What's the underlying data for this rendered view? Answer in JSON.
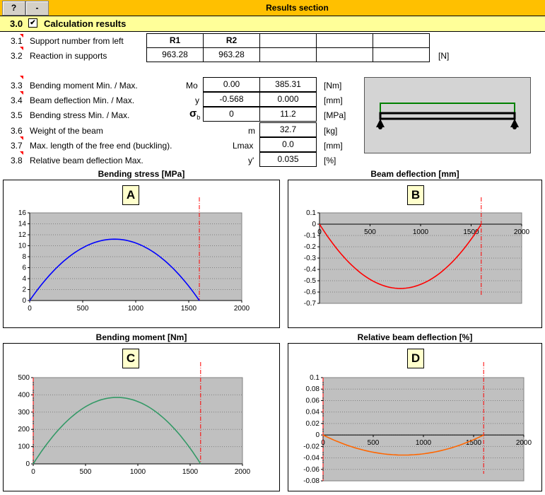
{
  "header": {
    "help_label": "?",
    "minus_label": "-",
    "title": "Results section"
  },
  "section": {
    "number": "3.0",
    "checked_mark": "✔",
    "title": "Calculation results"
  },
  "rows": {
    "r31": {
      "num": "3.1",
      "label": "Support number from left",
      "col1": "R1",
      "col2": "R2"
    },
    "r32": {
      "num": "3.2",
      "label": "Reaction in supports",
      "col1": "963.28",
      "col2": "963.28",
      "unit": "[N]"
    },
    "r33": {
      "num": "3.3",
      "label": "Bending moment Min. / Max.",
      "symbol": "Mo",
      "min": "0.00",
      "max": "385.31",
      "unit": "[Nm]"
    },
    "r34": {
      "num": "3.4",
      "label": "Beam deflection Min. / Max.",
      "symbol": "y",
      "min": "-0.568",
      "max": "0.000",
      "unit": "[mm]"
    },
    "r35": {
      "num": "3.5",
      "label": "Bending stress Min. / Max.",
      "symbol": "σ",
      "symbol_sub": "b",
      "min": "0",
      "max": "11.2",
      "unit": "[MPa]"
    },
    "r36": {
      "num": "3.6",
      "label": "Weight of the beam",
      "symbol": "m",
      "value": "32.7",
      "unit": "[kg]"
    },
    "r37": {
      "num": "3.7",
      "label": "Max. length of the free end (buckling).",
      "symbol": "Lmax",
      "value": "0.0",
      "unit": "[mm]"
    },
    "r38": {
      "num": "3.8",
      "label": "Relative beam deflection Max.",
      "symbol": "y'",
      "value": "0.035",
      "unit": "[%]"
    }
  },
  "chart_data": [
    {
      "id": "A",
      "type": "line",
      "title": "Bending stress  [MPa]",
      "tag": "A",
      "xlim": [
        0,
        2000
      ],
      "ylim": [
        0,
        16
      ],
      "x_ticks": [
        "0",
        "500",
        "1000",
        "1500",
        "2000"
      ],
      "y_ticks": [
        "0",
        "2",
        "4",
        "6",
        "8",
        "10",
        "12",
        "14",
        "16"
      ],
      "series": [
        {
          "color": "#0000ff",
          "shape": "parabola",
          "x_start": 0,
          "x_end": 1600,
          "peak": 11.2
        }
      ],
      "marker_x": 1600,
      "marker_color": "#ff0000"
    },
    {
      "id": "B",
      "type": "line",
      "title": "Beam deflection  [mm]",
      "tag": "B",
      "xlim": [
        0,
        2000
      ],
      "ylim": [
        -0.7,
        0.1
      ],
      "x_ticks": [
        "0",
        "500",
        "1000",
        "1500",
        "2000"
      ],
      "y_ticks": [
        "0.1",
        "0",
        "-0.1",
        "-0.2",
        "-0.3",
        "-0.4",
        "-0.5",
        "-0.6",
        "-0.7"
      ],
      "series": [
        {
          "color": "#ff0000",
          "shape": "parabola",
          "x_start": 0,
          "x_end": 1600,
          "peak": -0.568
        }
      ],
      "marker_x": 1600,
      "marker_color": "#ff0000"
    },
    {
      "id": "C",
      "type": "line",
      "title": "Bending moment  [Nm]",
      "tag": "C",
      "xlim": [
        0,
        2000
      ],
      "ylim": [
        0,
        500
      ],
      "x_ticks": [
        "0",
        "500",
        "1000",
        "1500",
        "2000"
      ],
      "y_ticks": [
        "0",
        "100",
        "200",
        "300",
        "400",
        "500"
      ],
      "series": [
        {
          "color": "#339966",
          "shape": "parabola",
          "x_start": 0,
          "x_end": 1600,
          "peak": 385.31
        }
      ],
      "marker_x": 1600,
      "marker_color": "#ff0000"
    },
    {
      "id": "D",
      "type": "line",
      "title": "Relative beam deflection  [%]",
      "tag": "D",
      "xlim": [
        0,
        2000
      ],
      "ylim": [
        -0.08,
        0.1
      ],
      "x_ticks": [
        "0",
        "500",
        "1000",
        "1500",
        "2000"
      ],
      "y_ticks": [
        "0.1",
        "0.08",
        "0.06",
        "0.04",
        "0.02",
        "0",
        "-0.02",
        "-0.04",
        "-0.06",
        "-0.08"
      ],
      "series": [
        {
          "color": "#ff6600",
          "shape": "parabola",
          "x_start": 0,
          "x_end": 1600,
          "peak": -0.035
        }
      ],
      "marker_x": 1600,
      "marker_color": "#ff0000"
    }
  ]
}
